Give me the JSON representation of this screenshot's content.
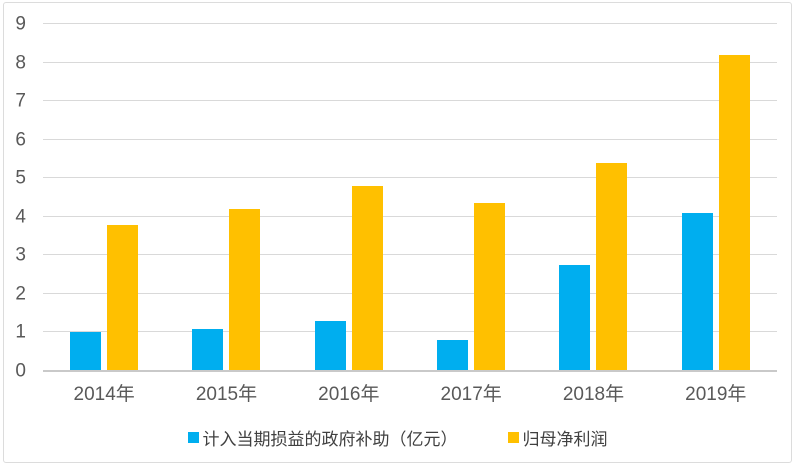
{
  "chart_data": {
    "type": "bar",
    "title": "",
    "xlabel": "",
    "ylabel": "",
    "categories": [
      "2014年",
      "2015年",
      "2016年",
      "2017年",
      "2018年",
      "2019年"
    ],
    "series": [
      {
        "name": "计入当期损益的政府补助（亿元）",
        "color": "#00AEEF",
        "values": [
          1.0,
          1.1,
          1.3,
          0.8,
          2.75,
          4.1
        ]
      },
      {
        "name": "归母净利润",
        "color": "#FFC000",
        "values": [
          3.8,
          4.2,
          4.8,
          4.35,
          5.4,
          8.2
        ]
      }
    ],
    "ylim": [
      0,
      9
    ],
    "yticks": [
      0,
      1,
      2,
      3,
      4,
      5,
      6,
      7,
      8,
      9
    ],
    "grid": true,
    "legend_position": "bottom",
    "colors": {
      "gridline": "#D9D9D9",
      "axis_line": "#C9C9C9",
      "tick_label": "#595959",
      "legend_text": "#404040",
      "frame_border": "#DCDCDC",
      "background": "#FFFFFF"
    }
  }
}
